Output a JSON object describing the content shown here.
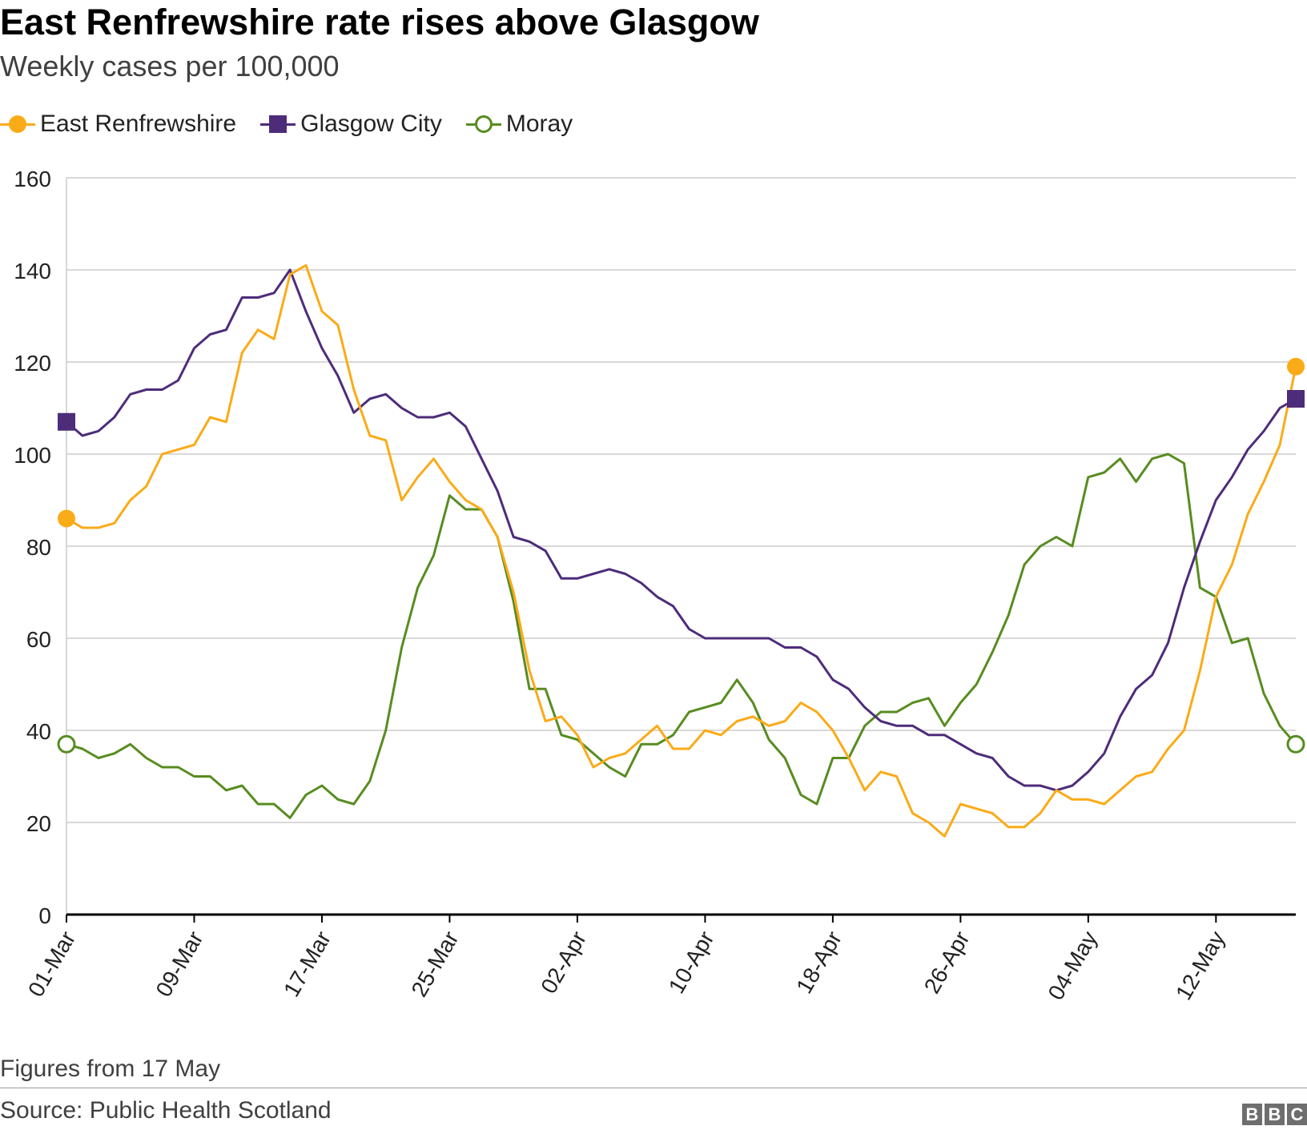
{
  "header": {
    "title": "East Renfrewshire rate rises above Glasgow",
    "subtitle": "Weekly cases per 100,000"
  },
  "footer": {
    "note": "Figures from 17 May",
    "source": "Source: Public Health Scotland",
    "logo_text": "BBC"
  },
  "colors": {
    "east_renfrewshire": "#faab18",
    "glasgow_city": "#4d2c7a",
    "moray": "#588c20",
    "grid": "#cccccc",
    "axis": "#000000"
  },
  "chart_data": {
    "type": "line",
    "title": "East Renfrewshire rate rises above Glasgow",
    "subtitle": "Weekly cases per 100,000",
    "xlabel": "",
    "ylabel": "",
    "ylim": [
      0,
      160
    ],
    "yticks": [
      "0",
      "20",
      "40",
      "60",
      "80",
      "100",
      "120",
      "140",
      "160"
    ],
    "grid": true,
    "legend_position": "top-left",
    "x_start_date": "2021-03-01",
    "x_end_date": "2021-05-17",
    "xtick_labels": [
      "01-Mar",
      "09-Mar",
      "17-Mar",
      "25-Mar",
      "02-Apr",
      "10-Apr",
      "18-Apr",
      "26-Apr",
      "04-May",
      "12-May"
    ],
    "series": [
      {
        "name": "East Renfrewshire",
        "color": "#faab18",
        "marker": "filled-circle",
        "values": [
          86,
          84,
          84,
          85,
          90,
          93,
          100,
          101,
          102,
          108,
          107,
          122,
          127,
          125,
          139,
          141,
          131,
          128,
          114,
          104,
          103,
          90,
          95,
          99,
          94,
          90,
          88,
          82,
          70,
          53,
          42,
          43,
          39,
          32,
          34,
          35,
          38,
          41,
          36,
          36,
          40,
          39,
          42,
          43,
          41,
          42,
          46,
          44,
          40,
          34,
          27,
          31,
          30,
          22,
          20,
          17,
          24,
          23,
          22,
          19,
          19,
          22,
          27,
          25,
          25,
          24,
          27,
          30,
          31,
          36,
          40,
          53,
          69,
          76,
          87,
          94,
          102,
          119
        ]
      },
      {
        "name": "Glasgow City",
        "color": "#4d2c7a",
        "marker": "filled-square",
        "values": [
          107,
          104,
          105,
          108,
          113,
          114,
          114,
          116,
          123,
          126,
          127,
          134,
          134,
          135,
          140,
          131,
          123,
          117,
          109,
          112,
          113,
          110,
          108,
          108,
          109,
          106,
          99,
          92,
          82,
          81,
          79,
          73,
          73,
          74,
          75,
          74,
          72,
          69,
          67,
          62,
          60,
          60,
          60,
          60,
          60,
          58,
          58,
          56,
          51,
          49,
          45,
          42,
          41,
          41,
          39,
          39,
          37,
          35,
          34,
          30,
          28,
          28,
          27,
          28,
          31,
          35,
          43,
          49,
          52,
          59,
          71,
          81,
          90,
          95,
          101,
          105,
          110,
          112
        ]
      },
      {
        "name": "Moray",
        "color": "#588c20",
        "marker": "hollow-circle",
        "values": [
          37,
          36,
          34,
          35,
          37,
          34,
          32,
          32,
          30,
          30,
          27,
          28,
          24,
          24,
          21,
          26,
          28,
          25,
          24,
          29,
          40,
          58,
          71,
          78,
          91,
          88,
          88,
          82,
          68,
          49,
          49,
          39,
          38,
          35,
          32,
          30,
          37,
          37,
          39,
          44,
          45,
          46,
          51,
          46,
          38,
          34,
          26,
          24,
          34,
          34,
          41,
          44,
          44,
          46,
          47,
          41,
          46,
          50,
          57,
          65,
          76,
          80,
          82,
          80,
          95,
          96,
          99,
          94,
          99,
          100,
          98,
          71,
          69,
          59,
          60,
          48,
          41,
          37
        ]
      }
    ]
  }
}
